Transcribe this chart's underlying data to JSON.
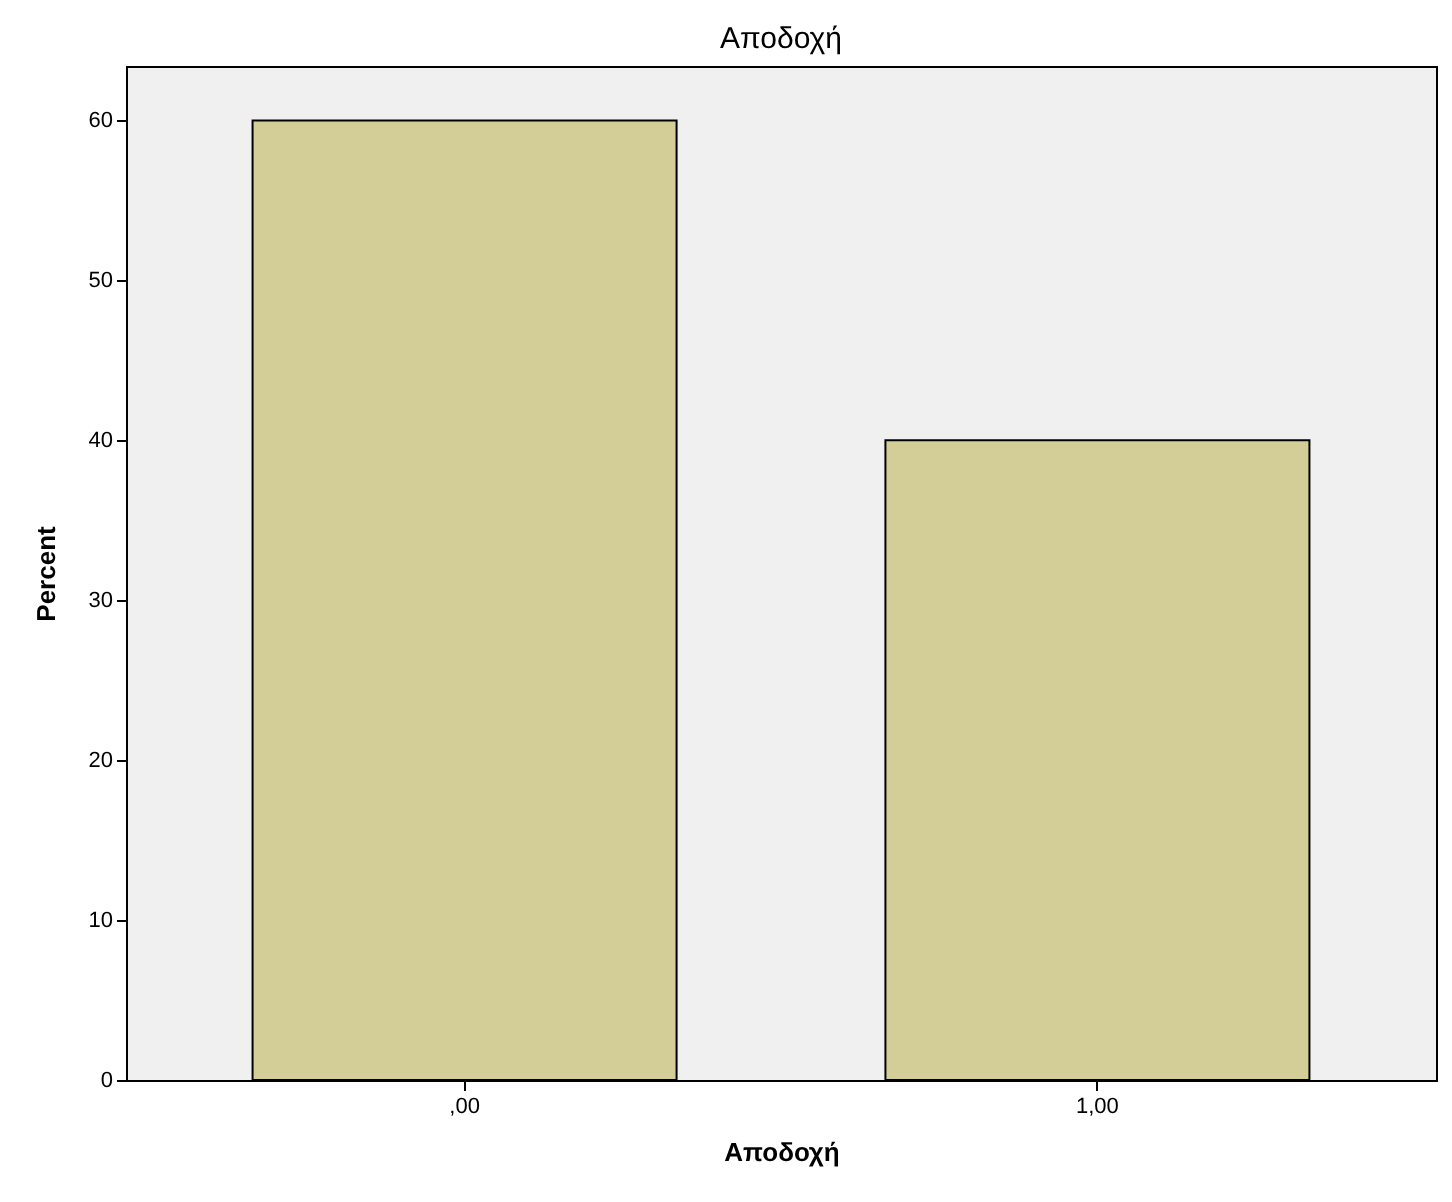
{
  "chart_data": {
    "type": "bar",
    "title": "Αποδοχή",
    "xlabel": "Αποδοχή",
    "ylabel": "Percent",
    "categories": [
      ",00",
      "1,00"
    ],
    "values": [
      60,
      40
    ],
    "color": "#d3ce97",
    "ylim": [
      0,
      63.4
    ],
    "yticks": [
      0,
      10,
      20,
      30,
      40,
      50,
      60
    ],
    "grid": false
  }
}
